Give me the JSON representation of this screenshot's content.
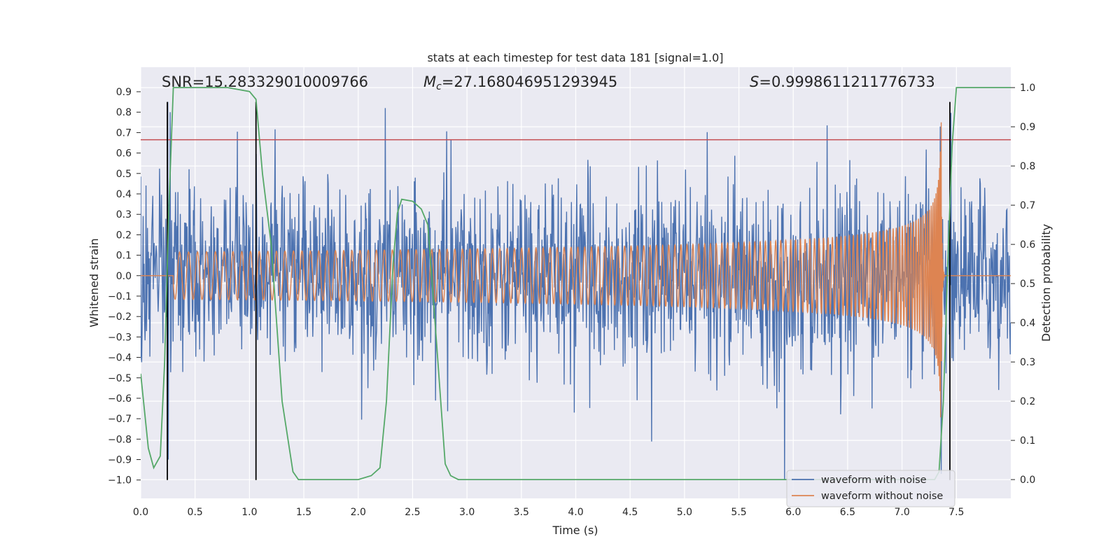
{
  "chart_data": {
    "type": "line",
    "title": "stats at each timestep for test data 181 [signal=1.0]",
    "xlabel": "Time (s)",
    "ylabel": "Whitened strain",
    "y2label": "Detection probability",
    "xlim": [
      0.0,
      8.0
    ],
    "ylim": [
      -1.09,
      1.02
    ],
    "y2lim": [
      -0.048,
      1.052
    ],
    "xticks": [
      0.0,
      0.5,
      1.0,
      1.5,
      2.0,
      2.5,
      3.0,
      3.5,
      4.0,
      4.5,
      5.0,
      5.5,
      6.0,
      6.5,
      7.0,
      7.5
    ],
    "xtick_labels": [
      "0.0",
      "0.5",
      "1.0",
      "1.5",
      "2.0",
      "2.5",
      "3.0",
      "3.5",
      "4.0",
      "4.5",
      "5.0",
      "5.5",
      "6.0",
      "6.5",
      "7.0",
      "7.5"
    ],
    "yticks": [
      0.9,
      0.8,
      0.7,
      0.6,
      0.5,
      0.4,
      0.3,
      0.2,
      0.1,
      0.0,
      -0.1,
      -0.2,
      -0.3,
      -0.4,
      -0.5,
      -0.6,
      -0.7,
      -0.8,
      -0.9,
      -1.0
    ],
    "ytick_labels": [
      "0.9",
      "0.8",
      "0.7",
      "0.6",
      "0.5",
      "0.4",
      "0.3",
      "0.2",
      "0.1",
      "0.0",
      "−0.1",
      "−0.2",
      "−0.3",
      "−0.4",
      "−0.5",
      "−0.6",
      "−0.7",
      "−0.8",
      "−0.9",
      "−1.0"
    ],
    "y2ticks": [
      1.0,
      0.9,
      0.8,
      0.7,
      0.6,
      0.5,
      0.4,
      0.3,
      0.2,
      0.1,
      0.0
    ],
    "y2tick_labels": [
      "1.0",
      "0.9",
      "0.8",
      "0.7",
      "0.6",
      "0.5",
      "0.4",
      "0.3",
      "0.2",
      "0.1",
      "0.0"
    ],
    "annotations": {
      "snr": "SNR=15.283329010009766",
      "mc_symbol": "M",
      "mc_subscript": "c",
      "mc_value": "=27.168046951293945",
      "s_symbol": "S",
      "s_value": "=0.9998611211776733"
    },
    "legend": {
      "position": "lower right",
      "entries": [
        {
          "label": "waveform with noise",
          "color": "#4c72b0"
        },
        {
          "label": "waveform without noise",
          "color": "#dd8452"
        }
      ]
    },
    "series": [
      {
        "name": "waveform with noise",
        "axis": "left",
        "color": "#4c72b0",
        "kind": "noise",
        "typical_amplitude": 0.45,
        "spikes": [
          {
            "x": 0.25,
            "y": 0.85
          },
          {
            "x": 0.27,
            "y": 0.8
          },
          {
            "x": 5.92,
            "y": -1.0
          },
          {
            "x": 7.35,
            "y": 0.73
          },
          {
            "x": 7.36,
            "y": -0.97
          }
        ]
      },
      {
        "name": "waveform without noise",
        "axis": "left",
        "color": "#dd8452",
        "kind": "chirp",
        "t_merger": 7.36,
        "peak_amplitude": 0.75
      },
      {
        "name": "detection probability",
        "axis": "right",
        "color": "#55a868",
        "x": [
          0.0,
          0.07,
          0.12,
          0.18,
          0.22,
          0.26,
          0.3,
          0.5,
          0.8,
          1.0,
          1.06,
          1.12,
          1.2,
          1.3,
          1.4,
          1.45,
          1.6,
          2.0,
          2.12,
          2.2,
          2.26,
          2.32,
          2.36,
          2.4,
          2.5,
          2.58,
          2.64,
          2.72,
          2.8,
          2.85,
          2.92,
          3.0,
          5.0,
          7.0,
          7.3,
          7.34,
          7.38,
          7.42,
          7.46,
          7.5,
          7.8,
          8.0
        ],
        "y": [
          0.27,
          0.08,
          0.03,
          0.06,
          0.3,
          0.7,
          1.0,
          1.0,
          1.0,
          0.99,
          0.97,
          0.78,
          0.6,
          0.2,
          0.02,
          0.0,
          0.0,
          0.0,
          0.01,
          0.03,
          0.2,
          0.55,
          0.68,
          0.715,
          0.71,
          0.69,
          0.65,
          0.35,
          0.04,
          0.01,
          0.0,
          0.0,
          0.0,
          0.0,
          0.0,
          0.02,
          0.2,
          0.55,
          0.85,
          1.0,
          1.0,
          1.0
        ]
      }
    ],
    "hlines": [
      {
        "axis": "left",
        "y": 0.665,
        "color": "#c44e52"
      }
    ],
    "vlines": [
      {
        "x": 0.245,
        "ymin": -1.0,
        "ymax": 0.85,
        "color": "#000000"
      },
      {
        "x": 1.06,
        "ymin": -1.0,
        "ymax": 0.85,
        "color": "#000000"
      },
      {
        "x": 7.44,
        "ymin": -1.0,
        "ymax": 0.85,
        "color": "#000000"
      }
    ]
  }
}
